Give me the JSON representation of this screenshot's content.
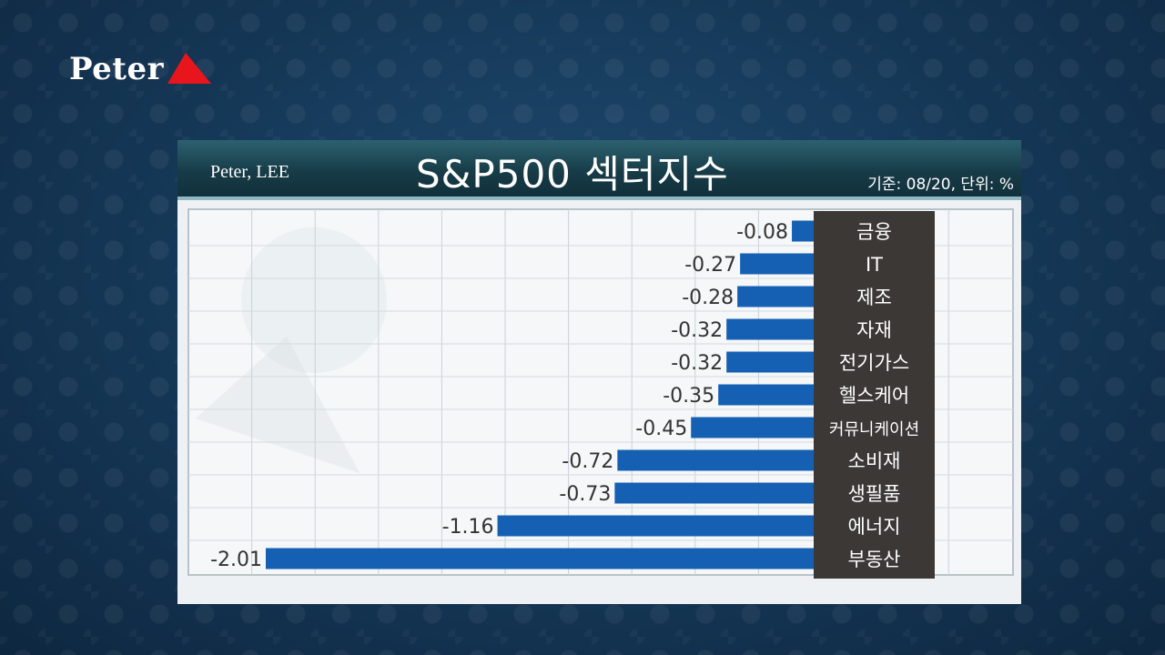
{
  "brand": {
    "logo_text": "Peter"
  },
  "colors": {
    "logo_accent": "#e8151d",
    "bar": "#1660b3",
    "label_box": "#3b3836",
    "header": "#1b4654"
  },
  "panel": {
    "author": "Peter, LEE",
    "title": "S&P500 섹터지수",
    "note": "기준: 08/20, 단위: %"
  },
  "chart_data": {
    "type": "bar",
    "orientation": "horizontal",
    "title": "S&P500 섹터지수",
    "categories": [
      "금융",
      "IT",
      "제조",
      "자재",
      "전기가스",
      "헬스케어",
      "커뮤니케이션",
      "소비재",
      "생필품",
      "에너지",
      "부동산"
    ],
    "values": [
      -0.08,
      -0.27,
      -0.28,
      -0.32,
      -0.32,
      -0.35,
      -0.45,
      -0.72,
      -0.73,
      -1.16,
      -2.01
    ],
    "value_labels": [
      "-0.08",
      "-0.27",
      "-0.28",
      "-0.32",
      "-0.32",
      "-0.35",
      "-0.45",
      "-0.72",
      "-0.73",
      "-1.16",
      "-2.01"
    ],
    "xlim": [
      -2.3,
      0
    ],
    "grid": true
  }
}
